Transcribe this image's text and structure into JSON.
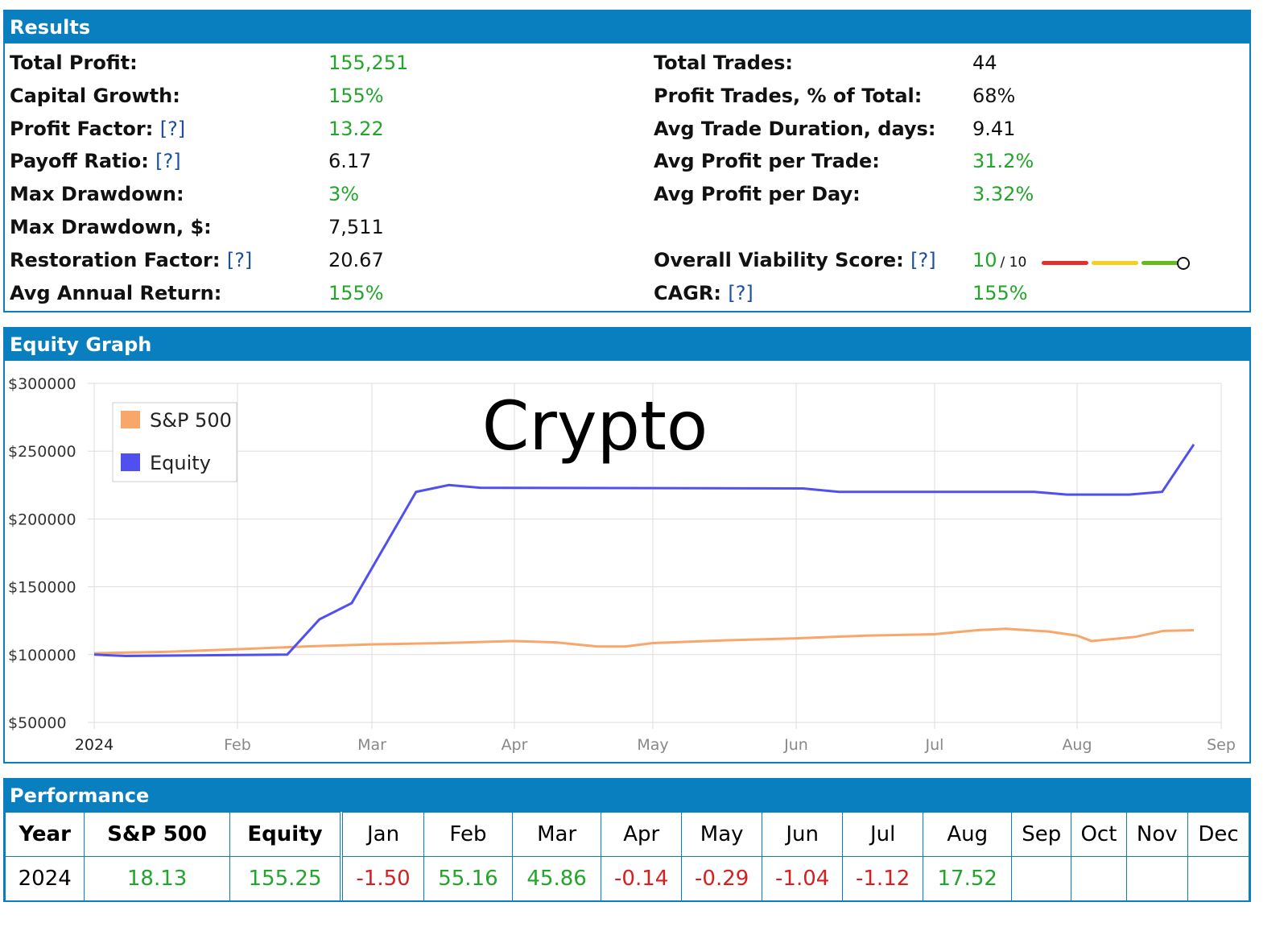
{
  "results": {
    "title": "Results",
    "left": [
      {
        "label": "Total Profit:",
        "help": "",
        "value": "155,251",
        "color": "g"
      },
      {
        "label": "Capital Growth:",
        "help": "",
        "value": "155%",
        "color": "g"
      },
      {
        "label": "Profit Factor:",
        "help": "[?]",
        "value": "13.22",
        "color": "g"
      },
      {
        "label": "Payoff Ratio:",
        "help": "[?]",
        "value": "6.17",
        "color": ""
      },
      {
        "label": "Max Drawdown:",
        "help": "",
        "value": "3%",
        "color": "g"
      },
      {
        "label": "Max Drawdown, $:",
        "help": "",
        "value": "7,511",
        "color": ""
      },
      {
        "label": "Restoration Factor:",
        "help": "[?]",
        "value": "20.67",
        "color": ""
      },
      {
        "label": "Avg Annual Return:",
        "help": "",
        "value": "155%",
        "color": "g"
      }
    ],
    "right": [
      {
        "label": "Total Trades:",
        "help": "",
        "value": "44",
        "color": ""
      },
      {
        "label": "Profit Trades, % of Total:",
        "help": "",
        "value": "68%",
        "color": ""
      },
      {
        "label": "Avg Trade Duration, days:",
        "help": "",
        "value": "9.41",
        "color": ""
      },
      {
        "label": "Avg Profit per Trade:",
        "help": "",
        "value": "31.2%",
        "color": "g"
      },
      {
        "label": "Avg Profit per Day:",
        "help": "",
        "value": "3.32%",
        "color": "g"
      },
      {
        "label": "",
        "help": "",
        "value": "",
        "color": ""
      },
      {
        "label": "Overall Viability Score:",
        "help": "[?]",
        "value": "10",
        "color": "g",
        "suffix": "/ 10"
      },
      {
        "label": "CAGR:",
        "help": "[?]",
        "value": "155%",
        "color": "g"
      }
    ],
    "viability_score": 10,
    "viability_max": 10
  },
  "equity": {
    "title": "Equity Graph"
  },
  "chart_data": {
    "type": "line",
    "title": "Crypto",
    "y_ticks": [
      "$300000",
      "$250000",
      "$200000",
      "$150000",
      "$100000",
      "$50000"
    ],
    "x_ticks": [
      "2024",
      "Feb",
      "Mar",
      "Apr",
      "May",
      "Jun",
      "Jul",
      "Aug",
      "Sep"
    ],
    "ylim": [
      50000,
      300000
    ],
    "xlim_months": [
      0,
      8
    ],
    "series": [
      {
        "name": "S&P 500",
        "color": "#f9a66b",
        "points": [
          [
            0,
            101000
          ],
          [
            0.5,
            102000
          ],
          [
            1,
            104000
          ],
          [
            1.5,
            106000
          ],
          [
            2,
            107500
          ],
          [
            2.5,
            108500
          ],
          [
            3,
            110000
          ],
          [
            3.3,
            109000
          ],
          [
            3.6,
            106000
          ],
          [
            3.8,
            106000
          ],
          [
            4,
            108500
          ],
          [
            4.5,
            110500
          ],
          [
            5,
            112000
          ],
          [
            5.5,
            114000
          ],
          [
            6,
            115000
          ],
          [
            6.3,
            118000
          ],
          [
            6.5,
            119000
          ],
          [
            6.8,
            117000
          ],
          [
            7,
            114000
          ],
          [
            7.1,
            110000
          ],
          [
            7.4,
            113000
          ],
          [
            7.6,
            117500
          ],
          [
            7.81,
            118000
          ]
        ]
      },
      {
        "name": "Equity",
        "color": "#5050f0",
        "points": [
          [
            0,
            100000
          ],
          [
            0.22,
            99000
          ],
          [
            1.37,
            100000
          ],
          [
            1.61,
            126000
          ],
          [
            1.85,
            138000
          ],
          [
            2.31,
            220000
          ],
          [
            2.54,
            225000
          ],
          [
            2.76,
            223000
          ],
          [
            5.05,
            222500
          ],
          [
            5.31,
            220000
          ],
          [
            6.7,
            220000
          ],
          [
            6.93,
            218000
          ],
          [
            7.36,
            218000
          ],
          [
            7.59,
            220000
          ],
          [
            7.81,
            255000
          ]
        ]
      }
    ]
  },
  "performance": {
    "title": "Performance",
    "headers": [
      "Year",
      "S&P 500",
      "Equity",
      "Jan",
      "Feb",
      "Mar",
      "Apr",
      "May",
      "Jun",
      "Jul",
      "Aug",
      "Sep",
      "Oct",
      "Nov",
      "Dec"
    ],
    "row": [
      "2024",
      "18.13",
      "155.25",
      "-1.50",
      "55.16",
      "45.86",
      "-0.14",
      "-0.29",
      "-1.04",
      "-1.12",
      "17.52",
      "",
      "",
      "",
      ""
    ]
  }
}
